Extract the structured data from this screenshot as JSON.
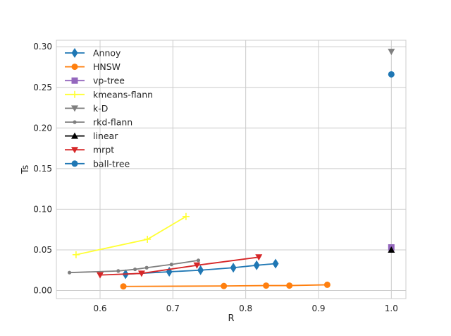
{
  "chart_data": {
    "type": "line",
    "xlabel": "R",
    "ylabel": "Ts",
    "xlim": [
      0.54,
      1.02
    ],
    "ylim": [
      -0.01,
      0.308
    ],
    "xticks": [
      0.6,
      0.7,
      0.8,
      0.9,
      1.0
    ],
    "xtick_labels": [
      "0.6",
      "0.7",
      "0.8",
      "0.9",
      "1.0"
    ],
    "yticks": [
      0.0,
      0.05,
      0.1,
      0.15,
      0.2,
      0.25,
      0.3
    ],
    "ytick_labels": [
      "0.00",
      "0.05",
      "0.10",
      "0.15",
      "0.20",
      "0.25",
      "0.30"
    ],
    "grid": true,
    "legend_position": "top-left",
    "series": [
      {
        "name": "Annoy",
        "color": "#1f77b4",
        "marker": "diamond",
        "x": [
          0.635,
          0.695,
          0.738,
          0.783,
          0.815,
          0.841
        ],
        "y": [
          0.02,
          0.023,
          0.025,
          0.028,
          0.031,
          0.033
        ]
      },
      {
        "name": "HNSW",
        "color": "#ff7f0e",
        "marker": "circle",
        "x": [
          0.632,
          0.77,
          0.828,
          0.86,
          0.912
        ],
        "y": [
          0.005,
          0.0055,
          0.006,
          0.006,
          0.007
        ]
      },
      {
        "name": "vp-tree",
        "color": "#9467bd",
        "marker": "square",
        "x": [
          1.0
        ],
        "y": [
          0.053
        ]
      },
      {
        "name": "kmeans-flann",
        "color": "#ffff33",
        "marker": "plus",
        "x": [
          0.567,
          0.665,
          0.718
        ],
        "y": [
          0.044,
          0.063,
          0.091
        ]
      },
      {
        "name": "k-D",
        "color": "#7f7f7f",
        "marker": "triangle-down",
        "x": [
          1.0
        ],
        "y": [
          0.294
        ]
      },
      {
        "name": "rkd-flann",
        "color": "#7f7f7f",
        "marker": "small-circle",
        "x": [
          0.558,
          0.625,
          0.648,
          0.664,
          0.698,
          0.735
        ],
        "y": [
          0.022,
          0.024,
          0.026,
          0.028,
          0.032,
          0.037
        ]
      },
      {
        "name": "linear",
        "color": "#000000",
        "marker": "triangle-up",
        "x": [
          1.0
        ],
        "y": [
          0.05
        ]
      },
      {
        "name": "mrpt",
        "color": "#d62728",
        "marker": "triangle-down",
        "x": [
          0.6,
          0.657,
          0.733,
          0.818
        ],
        "y": [
          0.019,
          0.021,
          0.031,
          0.041
        ]
      },
      {
        "name": "ball-tree",
        "color": "#1f77b4",
        "marker": "circle",
        "x": [
          1.0
        ],
        "y": [
          0.266
        ]
      }
    ]
  }
}
